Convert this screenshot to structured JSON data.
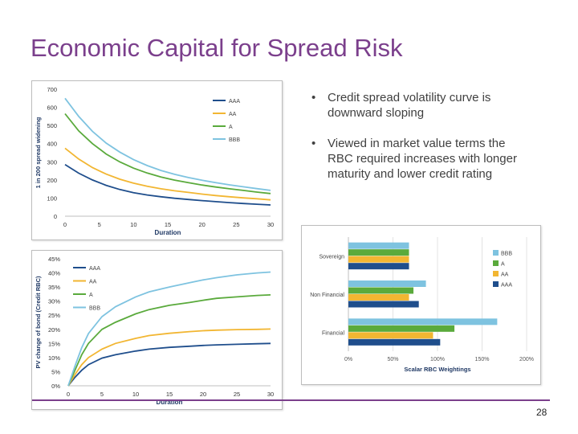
{
  "slide": {
    "title": "Economic Capital for Spread Risk",
    "page_number": "28"
  },
  "bullets": [
    "Credit spread volatility curve is downward sloping",
    "Viewed in market value terms the RBC required increases with longer maturity and lower credit rating"
  ],
  "colors": {
    "AAA": "#1f4e8c",
    "AA": "#f2b632",
    "A": "#5aaa3c",
    "BBB": "#7ec3e0",
    "title": "#7b3f8c"
  },
  "chart_data": [
    {
      "type": "line",
      "title": "",
      "xlabel": "Duration",
      "ylabel": "1 in 200 spread widening",
      "xlim": [
        0,
        30
      ],
      "ylim": [
        0,
        700
      ],
      "xticks": [
        "0",
        "5",
        "10",
        "15",
        "20",
        "25",
        "30"
      ],
      "yticks": [
        "0",
        "100",
        "200",
        "300",
        "400",
        "500",
        "600",
        "700"
      ],
      "x": [
        0,
        2,
        4,
        6,
        8,
        10,
        12,
        14,
        16,
        18,
        20,
        22,
        24,
        26,
        28,
        30
      ],
      "series": [
        {
          "name": "AAA",
          "values": [
            285,
            237,
            200,
            170,
            147,
            130,
            117,
            107,
            99,
            92,
            86,
            80,
            75,
            70,
            66,
            62
          ]
        },
        {
          "name": "AA",
          "values": [
            375,
            315,
            268,
            232,
            204,
            182,
            165,
            151,
            140,
            131,
            122,
            114,
            107,
            101,
            96,
            90
          ]
        },
        {
          "name": "A",
          "values": [
            565,
            470,
            400,
            343,
            299,
            265,
            238,
            216,
            199,
            185,
            172,
            161,
            151,
            142,
            133,
            125
          ]
        },
        {
          "name": "BBB",
          "values": [
            650,
            550,
            468,
            403,
            353,
            312,
            279,
            252,
            231,
            213,
            198,
            185,
            173,
            162,
            152,
            142
          ]
        }
      ],
      "legend": "top-right"
    },
    {
      "type": "line",
      "title": "",
      "xlabel": "Duration",
      "ylabel": "PV change of bond (Credit RBC)",
      "xlim": [
        0,
        30
      ],
      "ylim": [
        0,
        45
      ],
      "xticks": [
        "0",
        "5",
        "10",
        "15",
        "20",
        "25",
        "30"
      ],
      "yticks": [
        "0%",
        "5%",
        "10%",
        "15%",
        "20%",
        "25%",
        "30%",
        "35%",
        "40%",
        "45%"
      ],
      "x": [
        0,
        1,
        2,
        3,
        5,
        7,
        10,
        12,
        15,
        18,
        20,
        22,
        25,
        28,
        30
      ],
      "series": [
        {
          "name": "AAA",
          "values": [
            0,
            3.0,
            5.5,
            7.5,
            9.8,
            11.0,
            12.3,
            13.0,
            13.6,
            14.0,
            14.3,
            14.5,
            14.7,
            14.9,
            15.0
          ]
        },
        {
          "name": "AA",
          "values": [
            0,
            4.0,
            7.5,
            10.0,
            13.0,
            15.0,
            16.8,
            17.8,
            18.6,
            19.2,
            19.5,
            19.7,
            19.9,
            20.0,
            20.1
          ]
        },
        {
          "name": "A",
          "values": [
            0,
            5.5,
            11.0,
            15.0,
            20.0,
            22.5,
            25.5,
            27.0,
            28.5,
            29.5,
            30.3,
            31.0,
            31.5,
            32.0,
            32.2
          ]
        },
        {
          "name": "BBB",
          "values": [
            0,
            7.0,
            13.5,
            18.5,
            24.5,
            28.0,
            31.5,
            33.3,
            35.0,
            36.5,
            37.5,
            38.3,
            39.3,
            40.0,
            40.3
          ]
        }
      ],
      "legend": "top-left"
    },
    {
      "type": "bar",
      "orientation": "horizontal",
      "title": "",
      "xlabel": "Scalar RBC Weightings",
      "ylabel": "",
      "xlim": [
        0,
        200
      ],
      "xticks": [
        "0%",
        "50%",
        "100%",
        "150%",
        "200%"
      ],
      "categories": [
        "Sovereign",
        "Non Financial",
        "Financial"
      ],
      "series": [
        {
          "name": "BBB",
          "values": [
            68,
            87,
            167
          ]
        },
        {
          "name": "A",
          "values": [
            68,
            73,
            119
          ]
        },
        {
          "name": "AA",
          "values": [
            68,
            68,
            95
          ]
        },
        {
          "name": "AAA",
          "values": [
            68,
            79,
            103
          ]
        }
      ],
      "legend_order": [
        "BBB",
        "A",
        "AA",
        "AAA"
      ],
      "legend": "right"
    }
  ]
}
